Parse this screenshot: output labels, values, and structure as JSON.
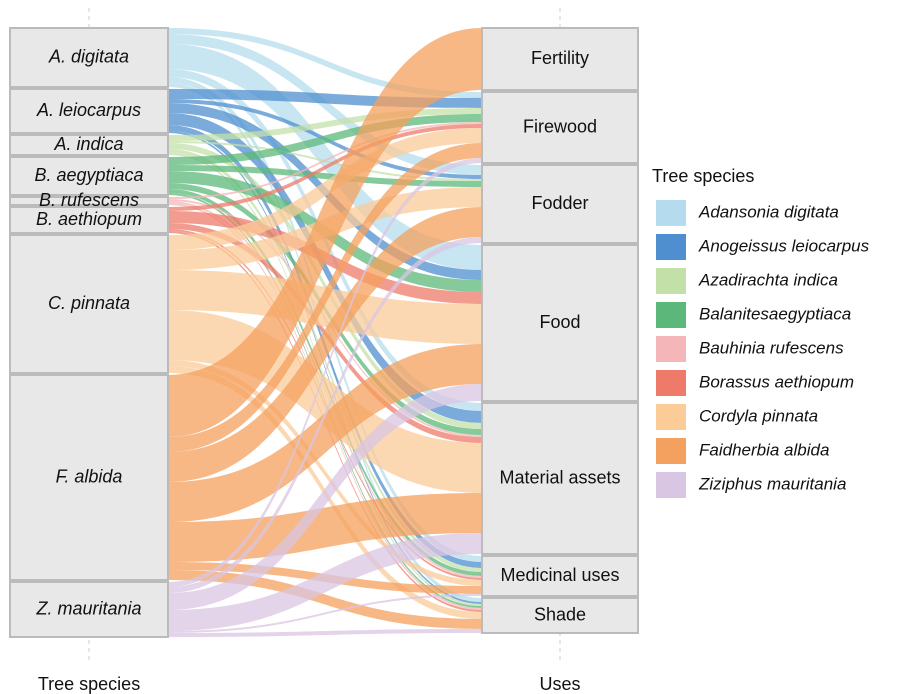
{
  "chart_data": {
    "type": "alluvial",
    "x_axis_labels": [
      "Tree species",
      "Uses"
    ],
    "legend_title": "Tree species",
    "categories": [
      "Fertility",
      "Firewood",
      "Fodder",
      "Food",
      "Material assets",
      "Medicinal uses",
      "Shade"
    ],
    "series": [
      {
        "name": "Adansonia digitata",
        "short_label": "A. digitata",
        "color": "#b5dcee",
        "values": [
          0,
          6,
          10,
          25,
          8,
          6,
          4
        ]
      },
      {
        "name": "Anogeissus leiocarpus",
        "short_label": "A. leiocarpus",
        "color": "#4f8fcf",
        "values": [
          0,
          10,
          4,
          10,
          12,
          6,
          2
        ]
      },
      {
        "name": "Azadirachta indica",
        "short_label": "A. indica",
        "color": "#c3e0a9",
        "values": [
          0,
          6,
          2,
          0,
          6,
          4,
          2
        ]
      },
      {
        "name": "Balanitesaegyptiaca",
        "short_label": "B. aegyptiaca",
        "color": "#5cb87a",
        "values": [
          0,
          8,
          6,
          12,
          6,
          4,
          2
        ]
      },
      {
        "name": "Bauhinia rufescens",
        "short_label": "B. rufescens",
        "color": "#f4b6b8",
        "values": [
          0,
          2,
          0,
          0,
          2,
          2,
          2
        ]
      },
      {
        "name": "Borassus aethiopum",
        "short_label": "B. aethiopum",
        "color": "#ee7b6a",
        "values": [
          0,
          4,
          0,
          12,
          6,
          2,
          2
        ]
      },
      {
        "name": "Cordyla pinnata",
        "short_label": "C. pinnata",
        "color": "#fbcb98",
        "values": [
          0,
          15,
          20,
          40,
          50,
          6,
          7
        ]
      },
      {
        "name": "Faidherbia albida",
        "short_label": "F. albida",
        "color": "#f4a05e",
        "values": [
          62,
          15,
          30,
          40,
          40,
          8,
          10
        ]
      },
      {
        "name": "Ziziphus mauritania",
        "short_label": "Z. mauritania",
        "color": "#d9c6e2",
        "values": [
          0,
          5,
          6,
          17,
          21,
          2,
          4
        ]
      }
    ]
  }
}
